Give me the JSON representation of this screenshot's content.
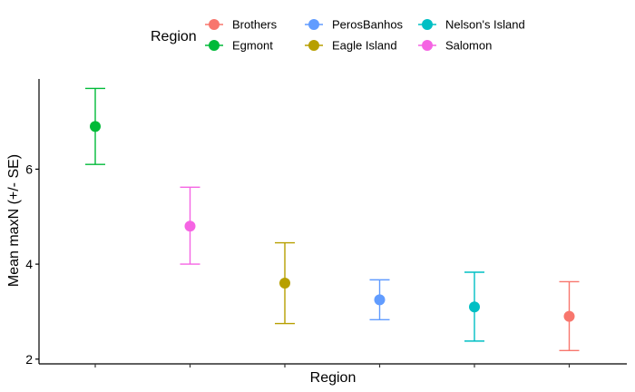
{
  "chart_data": {
    "type": "scatter",
    "title": "",
    "xlabel": "Region",
    "ylabel": "Mean maxN (+/- SE)",
    "ylim": [
      1.9,
      7.9
    ],
    "yticks": [
      2,
      4,
      6
    ],
    "grid": false,
    "legend": {
      "title": "Region",
      "placement": "top",
      "entries": [
        {
          "name": "Brothers",
          "color": "#F8766D"
        },
        {
          "name": "Egmont",
          "color": "#00BA38"
        },
        {
          "name": "PerosBanhos",
          "color": "#619CFF"
        },
        {
          "name": "Eagle Island",
          "color": "#B79F00"
        },
        {
          "name": "Nelson's Island",
          "color": "#00BFC4"
        },
        {
          "name": "Salomon",
          "color": "#F564E3"
        }
      ]
    },
    "categories": [
      "Egmont",
      "Salomon",
      "Eagle Island",
      "PerosBanhos",
      "Nelson's Island",
      "Brothers"
    ],
    "series": [
      {
        "name": "Egmont",
        "color": "#00BA38",
        "mean": 6.9,
        "lower": 6.1,
        "upper": 7.7
      },
      {
        "name": "Salomon",
        "color": "#F564E3",
        "mean": 4.8,
        "lower": 4.0,
        "upper": 5.62
      },
      {
        "name": "Eagle Island",
        "color": "#B79F00",
        "mean": 3.6,
        "lower": 2.75,
        "upper": 4.45
      },
      {
        "name": "PerosBanhos",
        "color": "#619CFF",
        "mean": 3.25,
        "lower": 2.83,
        "upper": 3.67
      },
      {
        "name": "Nelson's Island",
        "color": "#00BFC4",
        "mean": 3.1,
        "lower": 2.38,
        "upper": 3.83
      },
      {
        "name": "Brothers",
        "color": "#F8766D",
        "mean": 2.9,
        "lower": 2.18,
        "upper": 3.63
      }
    ]
  }
}
